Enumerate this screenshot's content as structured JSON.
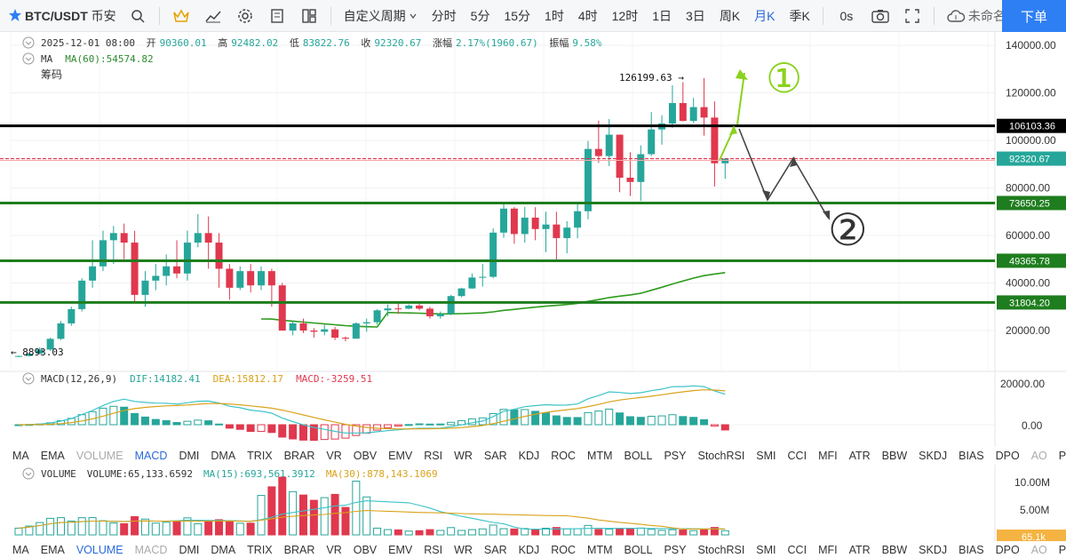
{
  "toolbar": {
    "symbol": "BTC/USDT",
    "exchange": "币安",
    "period_select": "自定义周期",
    "periods": [
      "分时",
      "5分",
      "15分",
      "1时",
      "4时",
      "12时",
      "1日",
      "3日",
      "周K",
      "月K",
      "季K"
    ],
    "active_period": "月K",
    "countdown": "0s",
    "layout_name": "未命名",
    "order_button": "下单",
    "icons": [
      "star-icon",
      "search-icon",
      "crown-icon",
      "indicator-icon",
      "gear-icon",
      "template-icon",
      "layout-icon",
      "camera-icon",
      "fullscreen-icon",
      "cloud-icon"
    ]
  },
  "ohlc_info": {
    "date": "2025-12-01 08:00",
    "open_label": "开",
    "open": "90360.01",
    "high_label": "高",
    "high": "92482.02",
    "low_label": "低",
    "low": "83822.76",
    "close_label": "收",
    "close": "92320.67",
    "change_label": "涨幅",
    "change": "2.17%(1960.67)",
    "amplitude_label": "振幅",
    "amplitude": "9.58%"
  },
  "ma_info": {
    "name": "MA",
    "value": "MA(60):54574.82"
  },
  "chip_label": "筹码",
  "price_axis": {
    "ticks": [
      "140000.00",
      "120000.00",
      "100000.00",
      "80000.00",
      "60000.00",
      "40000.00",
      "20000.00"
    ],
    "tags": [
      {
        "label": "106103.36",
        "color": "#000000"
      },
      {
        "label": "92320.67",
        "color": "#26a69a"
      },
      {
        "label": "73650.25",
        "color": "#1e7d1e"
      },
      {
        "label": "49365.78",
        "color": "#1e7d1e"
      },
      {
        "label": "31804.20",
        "color": "#1e7d1e"
      }
    ]
  },
  "annotations": {
    "high_marker": "126199.63",
    "low_marker": "8893.03",
    "circle_one": "①",
    "circle_two": "②"
  },
  "macd_info": {
    "name": "MACD(12,26,9)",
    "dif": "DIF:14182.41",
    "dea": "DEA:15812.17",
    "macd": "MACD:-3259.51",
    "ticks": [
      "20000.00",
      "0.00"
    ]
  },
  "volume_info": {
    "name": "VOLUME",
    "volume": "VOLUME:65,133.6592",
    "ma15": "MA(15):693,561.3912",
    "ma30": "MA(30):878,143.1069",
    "ticks": [
      "10.00M",
      "5.00M"
    ],
    "tag": "65.1k"
  },
  "indicator_tabs": [
    "MA",
    "EMA",
    "VOLUME",
    "MACD",
    "DMI",
    "DMA",
    "TRIX",
    "BRAR",
    "VR",
    "OBV",
    "EMV",
    "RSI",
    "WR",
    "SAR",
    "KDJ",
    "ROC",
    "MTM",
    "BOLL",
    "PSY",
    "StochRSI",
    "SMI",
    "CCI",
    "MFI",
    "ATR",
    "BBW",
    "SKDJ",
    "BIAS",
    "DPO",
    "AO",
    "Position"
  ],
  "tabs_row1_active": "MACD",
  "tabs_row2_active": "VOLUME",
  "chart_data": {
    "type": "candlestick",
    "interval": "monthly",
    "candles_ohlc": [
      [
        9000,
        9500,
        8893,
        9300
      ],
      [
        9300,
        10500,
        9100,
        10300
      ],
      [
        10300,
        13000,
        10000,
        12000
      ],
      [
        12000,
        17000,
        11500,
        16500
      ],
      [
        16500,
        24000,
        16000,
        23000
      ],
      [
        23000,
        30000,
        22000,
        29000
      ],
      [
        29000,
        42000,
        28000,
        41000
      ],
      [
        41000,
        58000,
        38000,
        47000
      ],
      [
        47000,
        62000,
        45000,
        58000
      ],
      [
        58000,
        64000,
        48000,
        61000
      ],
      [
        61000,
        65000,
        50000,
        57000
      ],
      [
        57000,
        62000,
        32000,
        35000
      ],
      [
        35000,
        45000,
        30000,
        41000
      ],
      [
        41000,
        48000,
        37000,
        43000
      ],
      [
        43000,
        52000,
        39000,
        47000
      ],
      [
        47000,
        58000,
        42000,
        44000
      ],
      [
        44000,
        62000,
        41000,
        57000
      ],
      [
        57000,
        69000,
        55000,
        61000
      ],
      [
        61000,
        68000,
        46000,
        57000
      ],
      [
        57000,
        61000,
        38000,
        46000
      ],
      [
        46000,
        48000,
        33000,
        38000
      ],
      [
        38000,
        47000,
        37000,
        45000
      ],
      [
        45000,
        48000,
        36000,
        39000
      ],
      [
        39000,
        47000,
        37000,
        45000
      ],
      [
        45000,
        46000,
        30000,
        39000
      ],
      [
        39000,
        40000,
        20000,
        20000
      ],
      [
        20000,
        24000,
        18000,
        23000
      ],
      [
        23000,
        25000,
        19000,
        20000
      ],
      [
        20000,
        21000,
        17000,
        19500
      ],
      [
        19500,
        22500,
        18000,
        20500
      ],
      [
        20500,
        21500,
        16000,
        17000
      ],
      [
        17000,
        17500,
        15500,
        16600
      ],
      [
        16600,
        23500,
        16500,
        23000
      ],
      [
        23000,
        25000,
        19500,
        23500
      ],
      [
        23500,
        29000,
        22500,
        28500
      ],
      [
        28500,
        31000,
        26000,
        29300
      ],
      [
        29300,
        31500,
        27000,
        29200
      ],
      [
        29200,
        31000,
        29000,
        30500
      ],
      [
        30500,
        31500,
        28500,
        29200
      ],
      [
        29200,
        30000,
        25000,
        26000
      ],
      [
        26000,
        28000,
        25000,
        27000
      ],
      [
        27000,
        35000,
        26500,
        34500
      ],
      [
        34500,
        38000,
        34000,
        37700
      ],
      [
        37700,
        44000,
        37500,
        42300
      ],
      [
        42300,
        48000,
        38500,
        42600
      ],
      [
        42600,
        63000,
        42000,
        61200
      ],
      [
        61200,
        73650,
        59000,
        71300
      ],
      [
        71300,
        72000,
        56500,
        60600
      ],
      [
        60600,
        72000,
        57000,
        67500
      ],
      [
        67500,
        71900,
        58000,
        62700
      ],
      [
        62700,
        70000,
        53000,
        64600
      ],
      [
        64600,
        70000,
        49000,
        58900
      ],
      [
        58900,
        66000,
        52500,
        63300
      ],
      [
        63300,
        73500,
        58800,
        70200
      ],
      [
        70200,
        99800,
        66800,
        96400
      ],
      [
        96400,
        108300,
        90500,
        93400
      ],
      [
        93400,
        109000,
        89200,
        102400
      ],
      [
        102400,
        102500,
        78200,
        84300
      ],
      [
        84300,
        95000,
        76600,
        82500
      ],
      [
        82500,
        97900,
        74500,
        94200
      ],
      [
        94200,
        111900,
        93400,
        104600
      ],
      [
        104600,
        110600,
        98200,
        107100
      ],
      [
        107100,
        123200,
        105300,
        115700
      ],
      [
        115700,
        124500,
        108000,
        108200
      ],
      [
        108200,
        117900,
        107300,
        114000
      ],
      [
        114000,
        126199,
        102000,
        109600
      ],
      [
        109600,
        116400,
        80600,
        90360
      ],
      [
        90360,
        92482,
        83822,
        92320
      ]
    ],
    "horizontal_levels": [
      106103.36,
      92320.67,
      73650.25,
      49365.78,
      31804.2
    ],
    "ylim": [
      0,
      145000
    ],
    "macd_ylim": [
      -10000,
      25000
    ],
    "volume_ylim": [
      0,
      12000000
    ]
  }
}
